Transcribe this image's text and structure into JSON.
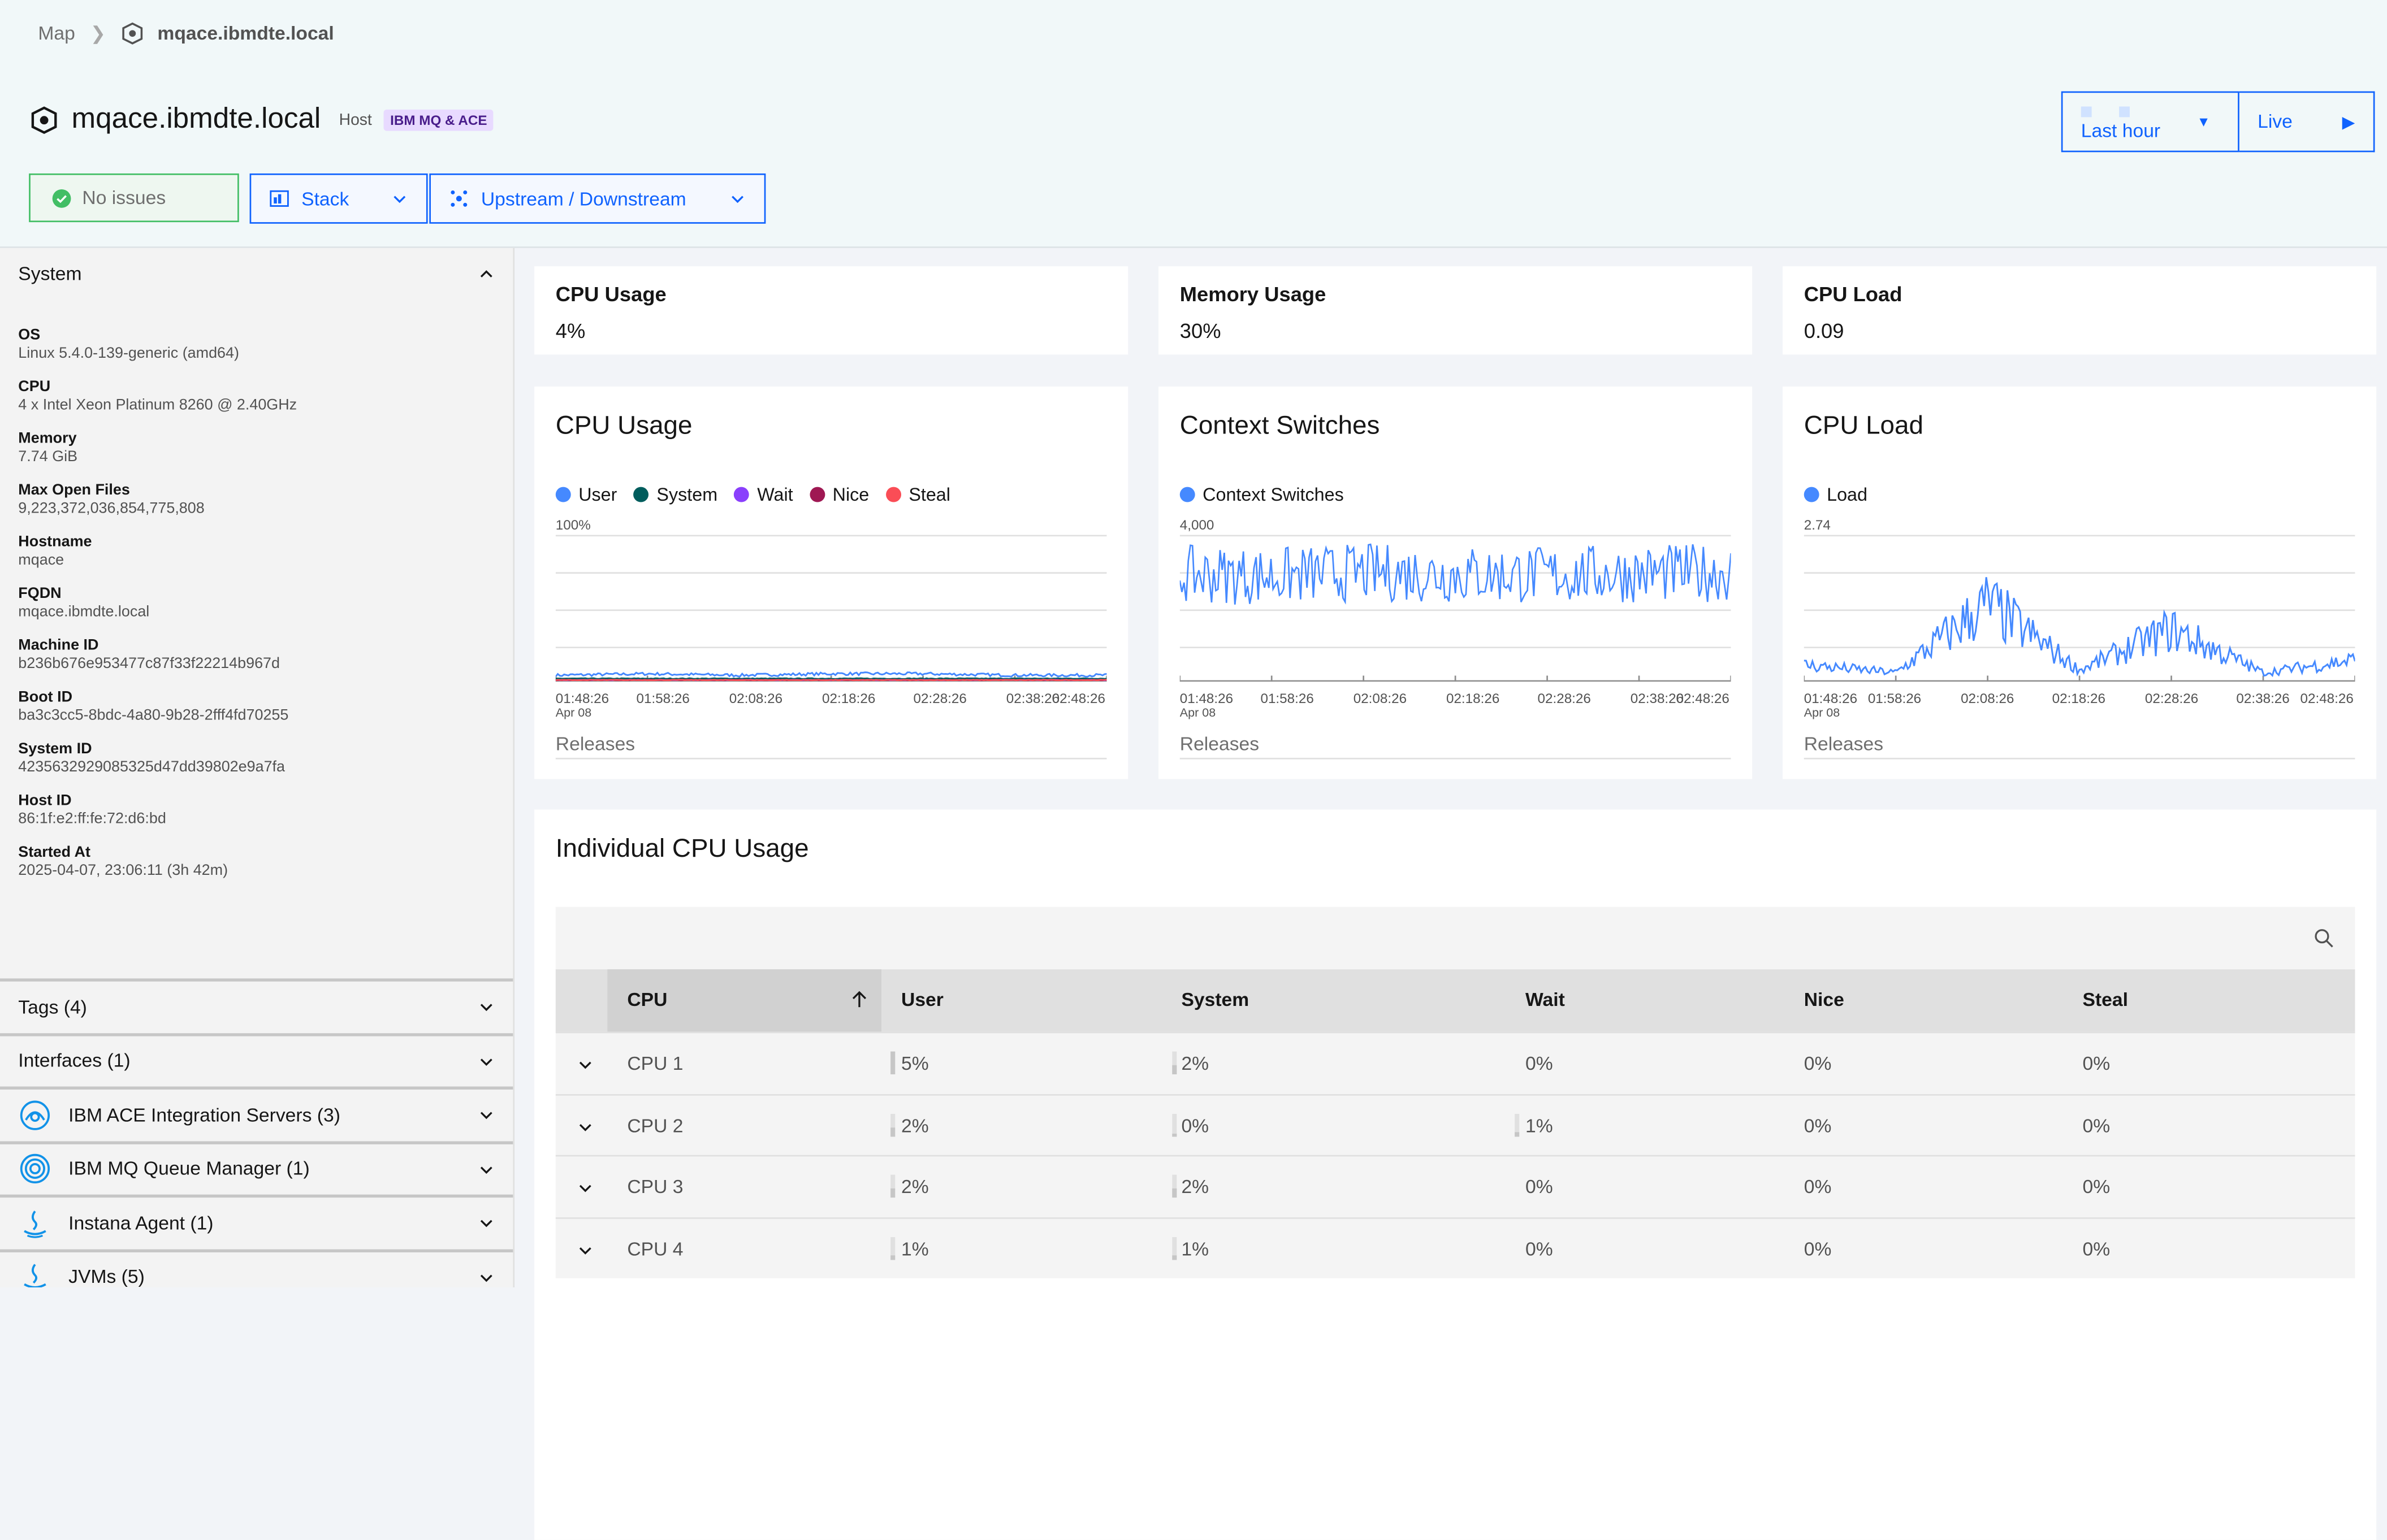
{
  "breadcrumb": {
    "root": "Map",
    "host": "mqace.ibmdte.local"
  },
  "page": {
    "title": "mqace.ibmdte.local",
    "kind": "Host",
    "tag": "IBM MQ & ACE"
  },
  "status": {
    "label": "No issues"
  },
  "buttons": {
    "stack": "Stack",
    "updown": "Upstream / Downstream"
  },
  "time": {
    "range": "Last hour",
    "live": "Live"
  },
  "sidebar": {
    "system_title": "System",
    "props": [
      {
        "k": "OS",
        "v": "Linux 5.4.0-139-generic (amd64)"
      },
      {
        "k": "CPU",
        "v": "4 x Intel Xeon Platinum 8260 @ 2.40GHz"
      },
      {
        "k": "Memory",
        "v": "7.74 GiB"
      },
      {
        "k": "Max Open Files",
        "v": "9,223,372,036,854,775,808"
      },
      {
        "k": "Hostname",
        "v": "mqace"
      },
      {
        "k": "FQDN",
        "v": "mqace.ibmdte.local"
      },
      {
        "k": "Machine ID",
        "v": "b236b676e953477c87f33f22214b967d"
      },
      {
        "k": "Boot ID",
        "v": "ba3c3cc5-8bdc-4a80-9b28-2fff4fd70255"
      },
      {
        "k": "System ID",
        "v": "4235632929085325d47dd39802e9a7fa"
      },
      {
        "k": "Host ID",
        "v": "86:1f:e2:ff:fe:72:d6:bd"
      },
      {
        "k": "Started At",
        "v": "2025-04-07, 23:06:11 (3h 42m)"
      }
    ],
    "sections": [
      {
        "label": "Tags (4)",
        "icon": ""
      },
      {
        "label": "Interfaces (1)",
        "icon": ""
      },
      {
        "label": "IBM ACE Integration Servers (3)",
        "icon": "ace-icon"
      },
      {
        "label": "IBM MQ Queue Manager (1)",
        "icon": "mq-icon"
      },
      {
        "label": "Instana Agent (1)",
        "icon": "java-icon"
      },
      {
        "label": "JVMs (5)",
        "icon": "java-icon"
      }
    ]
  },
  "kpis": [
    {
      "label": "CPU Usage",
      "value": "4%"
    },
    {
      "label": "Memory Usage",
      "value": "30%"
    },
    {
      "label": "CPU Load",
      "value": "0.09"
    }
  ],
  "charts": [
    {
      "title": "CPU Usage",
      "ymax": "100%",
      "legend": [
        {
          "name": "User",
          "color": "#4589ff"
        },
        {
          "name": "System",
          "color": "#005d5d"
        },
        {
          "name": "Wait",
          "color": "#8a3ffc"
        },
        {
          "name": "Nice",
          "color": "#9f1853"
        },
        {
          "name": "Steal",
          "color": "#fa4d56"
        }
      ],
      "xticks": [
        "01:48:26",
        "01:58:26",
        "02:08:26",
        "02:18:26",
        "02:28:26",
        "02:38:26",
        "02:48:26"
      ],
      "date": "Apr 08",
      "releases": "Releases"
    },
    {
      "title": "Context Switches",
      "ymax": "4,000",
      "legend": [
        {
          "name": "Context Switches",
          "color": "#4589ff"
        }
      ],
      "xticks": [
        "01:48:26",
        "01:58:26",
        "02:08:26",
        "02:18:26",
        "02:28:26",
        "02:38:26",
        "02:48:26"
      ],
      "date": "Apr 08",
      "releases": "Releases"
    },
    {
      "title": "CPU Load",
      "ymax": "2.74",
      "legend": [
        {
          "name": "Load",
          "color": "#4589ff"
        }
      ],
      "xticks": [
        "01:48:26",
        "01:58:26",
        "02:08:26",
        "02:18:26",
        "02:28:26",
        "02:38:26",
        "02:48:26"
      ],
      "date": "Apr 08",
      "releases": "Releases"
    }
  ],
  "chart_data": [
    {
      "type": "line",
      "title": "CPU Usage",
      "ylim": [
        0,
        100
      ],
      "x": [
        "01:48:26",
        "01:58:26",
        "02:08:26",
        "02:18:26",
        "02:28:26",
        "02:38:26",
        "02:48:26"
      ],
      "series": [
        {
          "name": "User",
          "values": [
            3,
            4,
            3,
            4,
            4,
            3,
            3
          ]
        },
        {
          "name": "System",
          "values": [
            1,
            1,
            1,
            1,
            1,
            1,
            1
          ]
        },
        {
          "name": "Wait",
          "values": [
            0,
            0,
            0,
            0,
            0,
            0,
            0
          ]
        },
        {
          "name": "Nice",
          "values": [
            0,
            0,
            0,
            0,
            0,
            0,
            0
          ]
        },
        {
          "name": "Steal",
          "values": [
            0,
            0,
            0,
            0,
            0,
            0,
            0
          ]
        }
      ]
    },
    {
      "type": "line",
      "title": "Context Switches",
      "ylim": [
        0,
        4000
      ],
      "x": [
        "01:48:26",
        "01:58:26",
        "02:08:26",
        "02:18:26",
        "02:28:26",
        "02:38:26",
        "02:48:26"
      ],
      "series": [
        {
          "name": "Context Switches",
          "values": [
            2900,
            2850,
            2950,
            2900,
            2880,
            2920,
            2950
          ]
        }
      ]
    },
    {
      "type": "line",
      "title": "CPU Load",
      "ylim": [
        0,
        2.74
      ],
      "x": [
        "01:48:26",
        "01:58:26",
        "02:08:26",
        "02:18:26",
        "02:28:26",
        "02:38:26",
        "02:48:26"
      ],
      "series": [
        {
          "name": "Load",
          "values": [
            0.3,
            0.15,
            1.5,
            0.2,
            1.0,
            0.15,
            0.4
          ]
        }
      ]
    }
  ],
  "icpu": {
    "title": "Individual CPU Usage",
    "columns": [
      "CPU",
      "User",
      "System",
      "Wait",
      "Nice",
      "Steal"
    ],
    "rows": [
      {
        "cpu": "CPU 1",
        "user": "5%",
        "system": "2%",
        "wait": "0%",
        "nice": "0%",
        "steal": "0%",
        "user_pct": 5,
        "system_pct": 2,
        "wait_pct": 0
      },
      {
        "cpu": "CPU 2",
        "user": "2%",
        "system": "0%",
        "wait": "1%",
        "nice": "0%",
        "steal": "0%",
        "user_pct": 2,
        "system_pct": 0,
        "wait_pct": 1
      },
      {
        "cpu": "CPU 3",
        "user": "2%",
        "system": "2%",
        "wait": "0%",
        "nice": "0%",
        "steal": "0%",
        "user_pct": 2,
        "system_pct": 2,
        "wait_pct": 0
      },
      {
        "cpu": "CPU 4",
        "user": "1%",
        "system": "1%",
        "wait": "0%",
        "nice": "0%",
        "steal": "0%",
        "user_pct": 1,
        "system_pct": 1,
        "wait_pct": 0
      }
    ]
  }
}
